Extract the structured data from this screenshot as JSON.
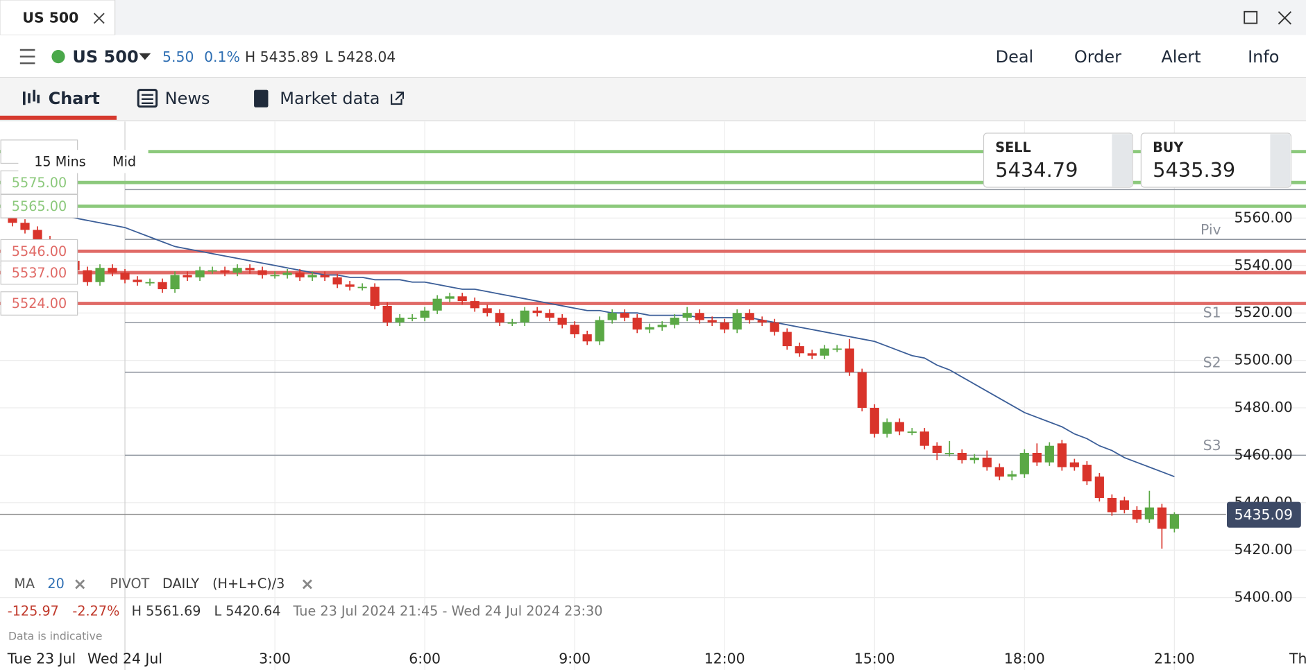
{
  "window_tab": {
    "title": "US 500"
  },
  "header": {
    "instrument": "US 500",
    "change": "5.50",
    "change_pct": "0.1%",
    "high": "H 5435.89",
    "low": "L 5428.04",
    "actions": [
      "Deal",
      "Order",
      "Alert",
      "Info"
    ]
  },
  "tabs": [
    "Chart",
    "News",
    "Market data"
  ],
  "chart_controls": {
    "interval": "15 Mins",
    "price_type": "Mid"
  },
  "quote": {
    "sell_label": "SELL",
    "sell": "5434.79",
    "buy_label": "BUY",
    "buy": "5435.39"
  },
  "indicators": {
    "ma_label": "MA",
    "ma_period": "20",
    "pivot_label": "PIVOT",
    "pivot_period": "DAILY",
    "pivot_formula": "(H+L+C)/3"
  },
  "stats": {
    "change": "-125.97",
    "change_pct": "-2.27%",
    "high": "H 5561.69",
    "low": "L 5420.64",
    "range": "Tue 23 Jul 2024 21:45 - Wed 24 Jul 2024 23:30"
  },
  "footnote": "Data is indicative",
  "chart_data": {
    "type": "candlestick",
    "categories": [
      null,
      null,
      null,
      null,
      null,
      null,
      null,
      null,
      null,
      "Wed 24 Jul",
      null,
      null,
      null,
      null,
      null,
      null,
      null,
      null,
      null,
      null,
      null,
      "3:00",
      null,
      null,
      null,
      null,
      null,
      null,
      null,
      null,
      null,
      null,
      null,
      "6:00",
      null,
      null,
      null,
      null,
      null,
      null,
      null,
      null,
      null,
      null,
      null,
      "9:00",
      null,
      null,
      null,
      null,
      null,
      null,
      null,
      null,
      null,
      null,
      null,
      "12:00",
      null,
      null,
      null,
      null,
      null,
      null,
      null,
      null,
      null,
      null,
      null,
      "15:00",
      null,
      null,
      null,
      null,
      null,
      null,
      null,
      null,
      null,
      null,
      null,
      "18:00",
      null,
      null,
      null,
      null,
      null,
      null,
      null,
      null,
      null,
      null,
      null,
      "21:00"
    ],
    "x_start_label": "Tue 23 Jul",
    "x_end_label": "Th",
    "open": [
      5561,
      5558,
      5555,
      5551,
      5548,
      5542,
      5538,
      5533,
      5539,
      5537,
      5534,
      5533,
      5533,
      5530,
      5536,
      5535,
      5538,
      5538,
      5537,
      5539,
      5538,
      5536,
      5536,
      5537,
      5535,
      5536,
      5535,
      5532,
      5531,
      5531,
      5523,
      5516,
      5518,
      5518,
      5521,
      5526,
      5527,
      5525,
      5522,
      5520,
      5516,
      5516,
      5521,
      5520,
      5518,
      5515,
      5511,
      5508,
      5517,
      5520,
      5518,
      5513,
      5514,
      5515,
      5518,
      5520,
      5517,
      5516,
      5513,
      5520,
      5517,
      5516,
      5512,
      5506,
      5503,
      5502,
      5505,
      5505,
      5495,
      5480,
      5469,
      5474,
      5470,
      5470,
      5464,
      5461,
      5461,
      5458,
      5459,
      5455,
      5451,
      5452,
      5461,
      5457,
      5465,
      5457,
      5456,
      5451,
      5442,
      5441,
      5437,
      5433,
      5438,
      5429
    ],
    "high": [
      5561.69,
      5559.5,
      5556.5,
      5552.5,
      5549.5,
      5543.5,
      5539.5,
      5540.5,
      5540.5,
      5538.5,
      5535.5,
      5534.5,
      5534.5,
      5537.5,
      5537.5,
      5539.5,
      5539.5,
      5539.5,
      5540.5,
      5540.5,
      5539.5,
      5537.5,
      5538.5,
      5538.5,
      5537.5,
      5537.5,
      5536.5,
      5533.5,
      5532.5,
      5532.5,
      5524.5,
      5519.5,
      5519.5,
      5522.5,
      5527.5,
      5528.5,
      5528.5,
      5526.5,
      5523.5,
      5521.5,
      5517.5,
      5522.5,
      5522.5,
      5521.5,
      5519.5,
      5516.5,
      5512.5,
      5518.5,
      5521.5,
      5521.5,
      5519.5,
      5515.5,
      5516.5,
      5519.5,
      5522.5,
      5521.5,
      5518.5,
      5517.5,
      5521.5,
      5521.5,
      5518.5,
      5517.5,
      5513.5,
      5507.5,
      5504.5,
      5506.5,
      5506.5,
      5509,
      5496.5,
      5481.5,
      5475.5,
      5475.5,
      5471.5,
      5471.5,
      5465.5,
      5466,
      5462.5,
      5460.5,
      5462,
      5456.5,
      5453.5,
      5462.5,
      5465,
      5465.5,
      5466.5,
      5458.5,
      5457.5,
      5452.5,
      5443.5,
      5442.5,
      5438.5,
      5445,
      5439.5,
      5436
    ],
    "low": [
      5556.5,
      5553.5,
      5549.5,
      5546.5,
      5540.5,
      5536.5,
      5531.5,
      5531.5,
      5535.5,
      5532.5,
      5531.5,
      5531.5,
      5528.5,
      5528.5,
      5533.5,
      5533.5,
      5536.5,
      5535.5,
      5535.5,
      5536.5,
      5534.5,
      5534.5,
      5534.5,
      5533.5,
      5533.5,
      5533.5,
      5530.5,
      5529.5,
      5529.5,
      5521.5,
      5514.5,
      5514.5,
      5516.5,
      5516.5,
      5519.5,
      5524.5,
      5523.5,
      5520.5,
      5518.5,
      5514.5,
      5514.5,
      5514.5,
      5518.5,
      5516.5,
      5513.5,
      5509.5,
      5506.5,
      5506.5,
      5515.5,
      5516.5,
      5511.5,
      5511.5,
      5512.5,
      5513.5,
      5516.5,
      5515.5,
      5514.5,
      5511.5,
      5511.5,
      5515.5,
      5514.5,
      5510.5,
      5504.5,
      5501.5,
      5500.5,
      5500.5,
      5503.5,
      5493.5,
      5478.5,
      5467.5,
      5467.5,
      5468.5,
      5468.5,
      5462.5,
      5458,
      5459.5,
      5456.5,
      5456.5,
      5453.5,
      5449.5,
      5449.5,
      5450.5,
      5455.5,
      5455.5,
      5453.5,
      5453.5,
      5447.5,
      5440.5,
      5434.5,
      5435.5,
      5431.5,
      5431.5,
      5420.64,
      5427.5
    ],
    "close": [
      5558,
      5555,
      5551,
      5548,
      5542,
      5538,
      5533,
      5539,
      5537,
      5534,
      5533,
      5533,
      5530,
      5536,
      5535,
      5538,
      5538,
      5537,
      5539,
      5538,
      5536,
      5536,
      5537,
      5535,
      5536,
      5535,
      5532,
      5531,
      5531,
      5523,
      5516,
      5518,
      5518,
      5521,
      5526,
      5527,
      5525,
      5522,
      5520,
      5516,
      5516,
      5521,
      5520,
      5518,
      5515,
      5511,
      5508,
      5517,
      5520,
      5518,
      5513,
      5514,
      5515,
      5518,
      5520,
      5517,
      5516,
      5513,
      5520,
      5517,
      5516,
      5512,
      5506,
      5503,
      5502,
      5505,
      5505,
      5495,
      5480,
      5469,
      5474,
      5470,
      5470,
      5464,
      5461,
      5461,
      5458,
      5459,
      5455,
      5451,
      5452,
      5461,
      5457,
      5464,
      5455,
      5455,
      5449,
      5442,
      5436,
      5437,
      5433,
      5438,
      5429,
      5435.09
    ],
    "up_color": "#5aa845",
    "down_color": "#d9342b",
    "moving_average": {
      "color": "#3b5e98",
      "values": [
        5565,
        5564,
        5563,
        5562,
        5561,
        5560,
        5559,
        5558,
        5557,
        5556,
        5554,
        5552,
        5550,
        5548,
        5547,
        5546,
        5545,
        5544,
        5543,
        5542,
        5541,
        5540,
        5539,
        5538,
        5537,
        5536,
        5536,
        5535,
        5535,
        5534,
        5534,
        5534,
        5533,
        5533,
        5532,
        5531,
        5530,
        5530,
        5529,
        5528,
        5527,
        5526,
        5525,
        5524,
        5523,
        5522,
        5521,
        5521,
        5520,
        5520,
        5520,
        5519,
        5519,
        5519,
        5519,
        5518,
        5518,
        5518,
        5518,
        5518,
        5517,
        5516,
        5515,
        5514,
        5513,
        5512,
        5511,
        5510,
        5509,
        5508,
        5506,
        5504,
        5502,
        5501,
        5498,
        5496,
        5493,
        5490,
        5487,
        5484,
        5481,
        5478,
        5476,
        5474,
        5472,
        5469,
        5467,
        5464,
        5462,
        5459,
        5457,
        5455,
        5453,
        5451
      ]
    },
    "levels": [
      {
        "value": 5588,
        "color": "#8cc97c"
      },
      {
        "value": 5575,
        "label": "5575.00",
        "color": "#8cc97c"
      },
      {
        "value": 5565,
        "label": "5565.00",
        "color": "#8cc97c"
      },
      {
        "value": 5546,
        "label": "5546.00",
        "color": "#e06a66"
      },
      {
        "value": 5537,
        "label": "5537.00",
        "color": "#e06a66"
      },
      {
        "value": 5524,
        "label": "5524.00",
        "color": "#e06a66"
      }
    ],
    "pivots": [
      {
        "value": 5572
      },
      {
        "value": 5551,
        "label": "Piv"
      },
      {
        "value": 5516,
        "label": "S1"
      },
      {
        "value": 5495,
        "label": "S2"
      },
      {
        "value": 5460,
        "label": "S3"
      }
    ],
    "pivot_color": "#9096a0",
    "last_price": 5435.09,
    "ylim": [
      5380,
      5600
    ],
    "yticks": [
      {
        "value": 5400,
        "label": "5400.00"
      },
      {
        "value": 5420,
        "label": "5420.00"
      },
      {
        "value": 5440,
        "label": "5440.00"
      },
      {
        "value": 5460,
        "label": "5460.00"
      },
      {
        "value": 5480,
        "label": "5480.00"
      },
      {
        "value": 5500,
        "label": "5500.00"
      },
      {
        "value": 5520,
        "label": "5520.00"
      },
      {
        "value": 5540,
        "label": "5540.00"
      },
      {
        "value": 5560,
        "label": "5560.00"
      }
    ],
    "grid": true
  }
}
